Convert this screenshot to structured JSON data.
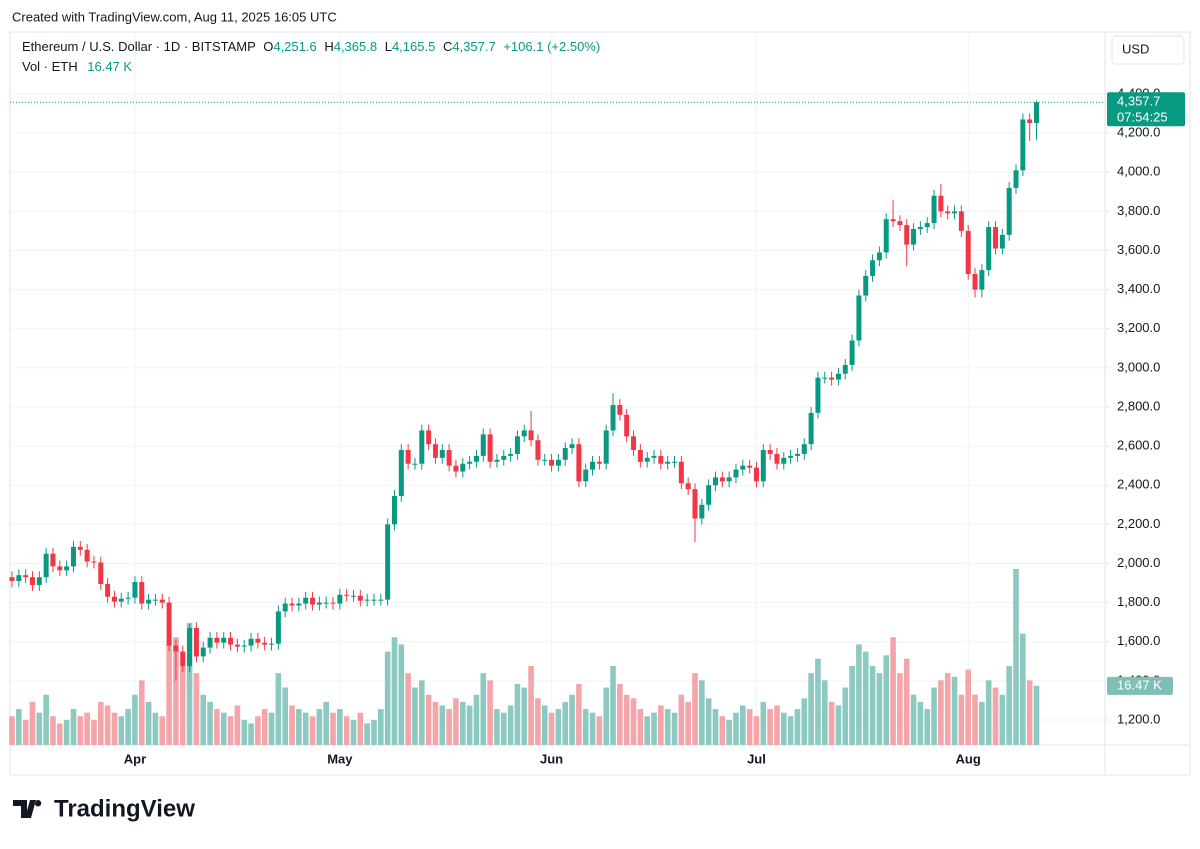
{
  "chart_data": {
    "type": "candlestick",
    "credit": "Created with TradingView.com, Aug 11, 2025 16:05 UTC",
    "title": "Ethereum / U.S. Dollar · 1D · BITSTAMP",
    "ohlc_header": {
      "o_key": "O",
      "o": "4,251.6",
      "h_key": "H",
      "h": "4,365.8",
      "l_key": "L",
      "l": "4,165.5",
      "c_key": "C",
      "c": "4,357.7",
      "change": "+106.1 (+2.50%)"
    },
    "volume_header": {
      "name": "Vol · ETH",
      "value": "16.47 K"
    },
    "currency": "USD",
    "last_price_label": "4,357.7",
    "countdown": "07:54:25",
    "last_volume_label": "16.47 K",
    "brand": "TradingView",
    "up_color": "#089981",
    "down_color": "#f23645",
    "volume_up_color": "#8cc9c0",
    "volume_down_color": "#f4a5a9",
    "grid": true,
    "ylim": [
      1072,
      4717
    ],
    "yticks": [
      {
        "value": 1200,
        "label": "1,200.0"
      },
      {
        "value": 1400,
        "label": "1,400.0"
      },
      {
        "value": 1600,
        "label": "1,600.0"
      },
      {
        "value": 1800,
        "label": "1,800.0"
      },
      {
        "value": 2000,
        "label": "2,000.0"
      },
      {
        "value": 2200,
        "label": "2,200.0"
      },
      {
        "value": 2400,
        "label": "2,400.0"
      },
      {
        "value": 2600,
        "label": "2,600.0"
      },
      {
        "value": 2800,
        "label": "2,800.0"
      },
      {
        "value": 3000,
        "label": "3,000.0"
      },
      {
        "value": 3200,
        "label": "3,200.0"
      },
      {
        "value": 3400,
        "label": "3,400.0"
      },
      {
        "value": 3600,
        "label": "3,600.0"
      },
      {
        "value": 3800,
        "label": "3,800.0"
      },
      {
        "value": 4000,
        "label": "4,000.0"
      },
      {
        "value": 4200,
        "label": "4,200.0"
      },
      {
        "value": 4400,
        "label": "4,400.0"
      }
    ],
    "categories": [
      null,
      null,
      null,
      null,
      null,
      null,
      null,
      null,
      null,
      null,
      null,
      null,
      null,
      null,
      null,
      null,
      null,
      null,
      "Apr",
      null,
      null,
      null,
      null,
      null,
      null,
      null,
      null,
      null,
      null,
      null,
      null,
      null,
      null,
      null,
      null,
      null,
      null,
      null,
      null,
      null,
      null,
      null,
      null,
      null,
      null,
      null,
      null,
      null,
      "May",
      null,
      null,
      null,
      null,
      null,
      null,
      null,
      null,
      null,
      null,
      null,
      null,
      null,
      null,
      null,
      null,
      null,
      null,
      null,
      null,
      null,
      null,
      null,
      null,
      null,
      null,
      null,
      null,
      null,
      null,
      "Jun",
      null,
      null,
      null,
      null,
      null,
      null,
      null,
      null,
      null,
      null,
      null,
      null,
      null,
      null,
      null,
      null,
      null,
      null,
      null,
      null,
      null,
      null,
      null,
      null,
      null,
      null,
      null,
      null,
      null,
      "Jul",
      null,
      null,
      null,
      null,
      null,
      null,
      null,
      null,
      null,
      null,
      null,
      null,
      null,
      null,
      null,
      null,
      null,
      null,
      null,
      null,
      null,
      null,
      null,
      null,
      null,
      null,
      null,
      null,
      null,
      null,
      "Aug",
      null,
      null,
      null,
      null,
      null,
      null,
      null,
      null,
      null,
      null
    ],
    "open": [
      1930,
      1910,
      1940,
      1930,
      1890,
      1930,
      2050,
      1985,
      1965,
      1985,
      2085,
      2070,
      2010,
      2005,
      1895,
      1830,
      1805,
      1820,
      1825,
      1905,
      1795,
      1815,
      1815,
      1800,
      1580,
      1550,
      1475,
      1670,
      1525,
      1570,
      1620,
      1595,
      1620,
      1585,
      1575,
      1580,
      1615,
      1595,
      1585,
      1590,
      1755,
      1795,
      1785,
      1795,
      1825,
      1790,
      1800,
      1800,
      1795,
      1840,
      1835,
      1835,
      1810,
      1815,
      1815,
      1815,
      2200,
      2345,
      2580,
      2510,
      2510,
      2680,
      2610,
      2540,
      2580,
      2500,
      2470,
      2510,
      2520,
      2550,
      2660,
      2520,
      2530,
      2550,
      2560,
      2650,
      2680,
      2630,
      2530,
      2530,
      2500,
      2530,
      2590,
      2610,
      2420,
      2480,
      2520,
      2510,
      2680,
      2810,
      2760,
      2650,
      2580,
      2520,
      2540,
      2550,
      2510,
      2520,
      2520,
      2410,
      2380,
      2230,
      2300,
      2400,
      2440,
      2420,
      2440,
      2480,
      2500,
      2490,
      2420,
      2580,
      2560,
      2510,
      2540,
      2550,
      2560,
      2610,
      2770,
      2950,
      2950,
      2940,
      2970,
      3015,
      3140,
      3370,
      3470,
      3550,
      3590,
      3760,
      3750,
      3730,
      3630,
      3710,
      3720,
      3740,
      3880,
      3800,
      3790,
      3800,
      3700,
      3480,
      3400,
      3500,
      3720,
      3610,
      3680,
      3920,
      4010,
      4270,
      4251.6
    ],
    "high": [
      1960,
      1970,
      1970,
      1960,
      1960,
      2080,
      2080,
      2015,
      2015,
      2115,
      2115,
      2100,
      2040,
      2035,
      1925,
      1860,
      1850,
      1855,
      1935,
      1935,
      1845,
      1845,
      1845,
      1830,
      1610,
      1580,
      1690,
      1700,
      1600,
      1650,
      1650,
      1650,
      1650,
      1615,
      1610,
      1645,
      1645,
      1625,
      1620,
      1785,
      1825,
      1825,
      1825,
      1855,
      1855,
      1830,
      1830,
      1830,
      1870,
      1870,
      1865,
      1865,
      1845,
      1845,
      1845,
      2230,
      2375,
      2610,
      2610,
      2540,
      2710,
      2710,
      2640,
      2610,
      2610,
      2530,
      2540,
      2550,
      2580,
      2690,
      2690,
      2560,
      2580,
      2590,
      2680,
      2710,
      2780,
      2660,
      2560,
      2560,
      2560,
      2620,
      2640,
      2640,
      2510,
      2550,
      2550,
      2710,
      2870,
      2840,
      2790,
      2680,
      2610,
      2570,
      2580,
      2580,
      2550,
      2550,
      2550,
      2440,
      2410,
      2330,
      2430,
      2470,
      2470,
      2470,
      2510,
      2530,
      2530,
      2520,
      2610,
      2610,
      2590,
      2570,
      2580,
      2590,
      2640,
      2800,
      2980,
      2980,
      2980,
      3000,
      3045,
      3170,
      3400,
      3500,
      3580,
      3620,
      3790,
      3860,
      3780,
      3760,
      3740,
      3750,
      3770,
      3910,
      3940,
      3830,
      3830,
      3830,
      3730,
      3510,
      3530,
      3750,
      3750,
      3710,
      3950,
      4040,
      4300,
      4300,
      4365.8
    ],
    "low": [
      1880,
      1880,
      1900,
      1860,
      1860,
      1900,
      1955,
      1935,
      1935,
      1955,
      2040,
      1980,
      1975,
      1865,
      1800,
      1775,
      1775,
      1790,
      1795,
      1765,
      1765,
      1785,
      1770,
      1550,
      1400,
      1445,
      1445,
      1495,
      1495,
      1540,
      1565,
      1565,
      1555,
      1545,
      1545,
      1550,
      1565,
      1555,
      1555,
      1560,
      1725,
      1755,
      1755,
      1765,
      1760,
      1760,
      1770,
      1765,
      1765,
      1805,
      1805,
      1780,
      1780,
      1785,
      1785,
      1785,
      2170,
      2315,
      2480,
      2480,
      2480,
      2580,
      2510,
      2510,
      2470,
      2440,
      2440,
      2480,
      2490,
      2520,
      2490,
      2490,
      2500,
      2520,
      2530,
      2620,
      2600,
      2500,
      2500,
      2470,
      2470,
      2500,
      2560,
      2390,
      2390,
      2450,
      2480,
      2480,
      2650,
      2730,
      2620,
      2550,
      2490,
      2490,
      2510,
      2480,
      2480,
      2490,
      2380,
      2350,
      2110,
      2200,
      2270,
      2370,
      2390,
      2390,
      2410,
      2450,
      2460,
      2390,
      2390,
      2530,
      2480,
      2480,
      2510,
      2520,
      2530,
      2580,
      2740,
      2920,
      2910,
      2910,
      2940,
      2985,
      3110,
      3340,
      3440,
      3520,
      3560,
      3720,
      3700,
      3520,
      3600,
      3680,
      3690,
      3710,
      3770,
      3760,
      3760,
      3670,
      3450,
      3360,
      3360,
      3470,
      3580,
      3580,
      3650,
      3890,
      3980,
      4160,
      4165.5
    ],
    "close": [
      1910,
      1940,
      1930,
      1890,
      1930,
      2050,
      1985,
      1965,
      1985,
      2085,
      2070,
      2010,
      2005,
      1895,
      1830,
      1805,
      1820,
      1825,
      1905,
      1795,
      1815,
      1815,
      1800,
      1580,
      1550,
      1475,
      1670,
      1525,
      1570,
      1620,
      1595,
      1620,
      1585,
      1575,
      1580,
      1615,
      1595,
      1585,
      1590,
      1755,
      1795,
      1785,
      1795,
      1825,
      1790,
      1800,
      1800,
      1795,
      1840,
      1835,
      1835,
      1810,
      1815,
      1815,
      1815,
      2200,
      2345,
      2580,
      2510,
      2510,
      2680,
      2610,
      2540,
      2580,
      2500,
      2470,
      2510,
      2520,
      2550,
      2660,
      2520,
      2530,
      2550,
      2560,
      2650,
      2680,
      2630,
      2530,
      2530,
      2500,
      2530,
      2590,
      2610,
      2420,
      2480,
      2520,
      2510,
      2680,
      2810,
      2760,
      2650,
      2580,
      2520,
      2540,
      2550,
      2510,
      2520,
      2520,
      2410,
      2380,
      2230,
      2300,
      2400,
      2440,
      2420,
      2440,
      2480,
      2500,
      2490,
      2420,
      2580,
      2560,
      2510,
      2540,
      2550,
      2560,
      2610,
      2770,
      2950,
      2950,
      2940,
      2970,
      3015,
      3140,
      3370,
      3470,
      3550,
      3590,
      3760,
      3750,
      3730,
      3630,
      3710,
      3720,
      3740,
      3880,
      3800,
      3790,
      3800,
      3700,
      3480,
      3400,
      3500,
      3720,
      3610,
      3680,
      3920,
      4010,
      4270,
      4251.6,
      4357.7
    ],
    "volume": [
      8,
      10,
      7,
      12,
      9,
      14,
      8,
      6,
      7,
      10,
      8,
      9,
      7,
      12,
      11,
      9,
      8,
      10,
      14,
      18,
      12,
      9,
      8,
      28,
      30,
      22,
      34,
      20,
      14,
      12,
      10,
      9,
      8,
      11,
      7,
      6,
      8,
      10,
      9,
      20,
      16,
      11,
      10,
      9,
      8,
      10,
      12,
      9,
      10,
      8,
      7,
      9,
      6,
      7,
      10,
      26,
      30,
      28,
      20,
      16,
      18,
      14,
      12,
      11,
      10,
      13,
      12,
      11,
      14,
      20,
      18,
      10,
      9,
      11,
      17,
      16,
      22,
      13,
      11,
      9,
      10,
      12,
      14,
      17,
      10,
      9,
      8,
      16,
      22,
      17,
      14,
      13,
      10,
      8,
      9,
      11,
      10,
      9,
      14,
      12,
      20,
      18,
      13,
      10,
      8,
      7,
      9,
      11,
      10,
      8,
      12,
      10,
      11,
      9,
      8,
      10,
      13,
      20,
      24,
      18,
      12,
      11,
      16,
      22,
      28,
      26,
      22,
      20,
      25,
      30,
      20,
      24,
      14,
      12,
      10,
      16,
      18,
      20,
      19,
      14,
      21,
      14,
      12,
      18,
      16,
      14,
      22,
      49,
      31,
      18,
      16.47
    ]
  }
}
